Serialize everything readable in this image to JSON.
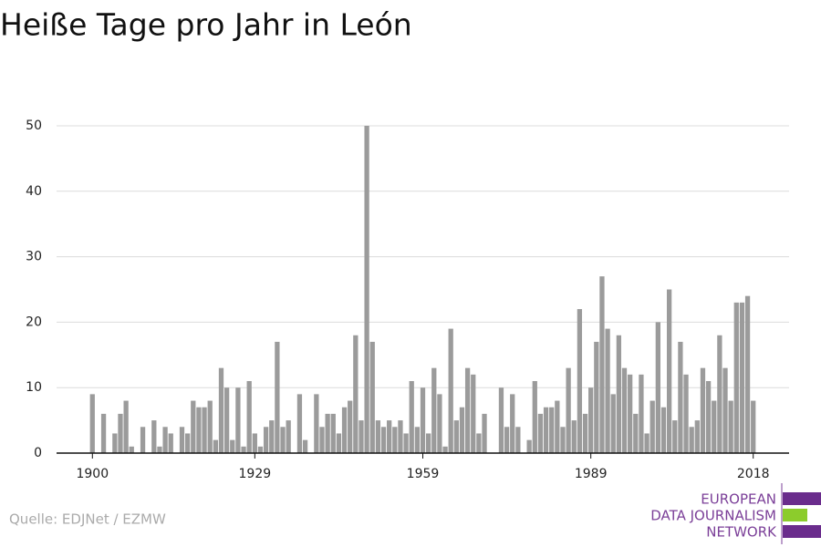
{
  "chart_data": {
    "type": "bar",
    "title": "Heiße Tage pro Jahr in León",
    "source": "Quelle: EDJNet / EZMW",
    "logo": [
      "EUROPEAN",
      "DATA JOURNALISM",
      "NETWORK"
    ],
    "color": "#9b9b9b",
    "x": [
      1900,
      1901,
      1902,
      1903,
      1904,
      1905,
      1906,
      1907,
      1908,
      1909,
      1910,
      1911,
      1912,
      1913,
      1914,
      1915,
      1916,
      1917,
      1918,
      1919,
      1920,
      1921,
      1922,
      1923,
      1924,
      1925,
      1926,
      1927,
      1928,
      1929,
      1930,
      1931,
      1932,
      1933,
      1934,
      1935,
      1936,
      1937,
      1938,
      1939,
      1940,
      1941,
      1942,
      1943,
      1944,
      1945,
      1946,
      1947,
      1948,
      1949,
      1950,
      1951,
      1952,
      1953,
      1954,
      1955,
      1956,
      1957,
      1958,
      1959,
      1960,
      1961,
      1962,
      1963,
      1964,
      1965,
      1966,
      1967,
      1968,
      1969,
      1970,
      1971,
      1972,
      1973,
      1974,
      1975,
      1976,
      1977,
      1978,
      1979,
      1980,
      1981,
      1982,
      1983,
      1984,
      1985,
      1986,
      1987,
      1988,
      1989,
      1990,
      1991,
      1992,
      1993,
      1994,
      1995,
      1996,
      1997,
      1998,
      1999,
      2000,
      2001,
      2002,
      2003,
      2004,
      2005,
      2006,
      2007,
      2008,
      2009,
      2010,
      2011,
      2012,
      2013,
      2014,
      2015,
      2016,
      2017,
      2018
    ],
    "values": [
      9,
      0,
      6,
      0,
      3,
      6,
      8,
      1,
      0,
      4,
      0,
      5,
      1,
      4,
      3,
      0,
      4,
      3,
      8,
      7,
      7,
      8,
      2,
      13,
      10,
      2,
      10,
      1,
      11,
      3,
      1,
      4,
      5,
      17,
      4,
      5,
      0,
      9,
      2,
      0,
      9,
      4,
      6,
      6,
      3,
      7,
      8,
      18,
      5,
      50,
      17,
      5,
      4,
      5,
      4,
      5,
      3,
      11,
      4,
      10,
      3,
      13,
      9,
      1,
      19,
      5,
      7,
      13,
      12,
      3,
      6,
      0,
      0,
      10,
      4,
      9,
      4,
      0,
      2,
      11,
      6,
      7,
      7,
      8,
      4,
      13,
      5,
      22,
      6,
      10,
      17,
      27,
      19,
      9,
      18,
      13,
      12,
      6,
      12,
      3,
      8,
      20,
      7,
      25,
      5,
      17,
      12,
      4,
      5,
      13,
      11,
      8,
      18,
      13,
      8,
      23,
      23,
      24,
      8
    ],
    "xlim": [
      1893.6,
      2024.4
    ],
    "xticks": [
      1900,
      1929,
      1959,
      1989,
      2018
    ],
    "ylim": [
      0,
      50
    ],
    "yticks": [
      0,
      10,
      20,
      30,
      40,
      50
    ],
    "grid": true
  }
}
